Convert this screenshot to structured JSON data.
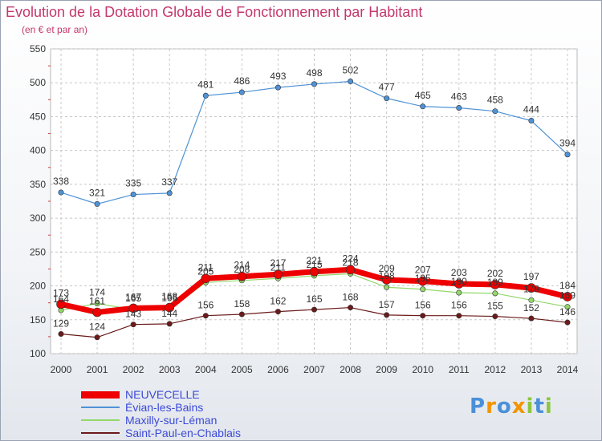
{
  "header": {
    "title": "Evolution de la Dotation Globale de Fonctionnement par Habitant",
    "subtitle": "(en € et par an)"
  },
  "colors": {
    "title": "#c4386b",
    "axis_text": "#333333",
    "legend_text": "#3b49d6",
    "grid": "#c8c8c8"
  },
  "chart_data": {
    "type": "line",
    "title": "Evolution de la Dotation Globale de Fonctionnement par Habitant",
    "subtitle": "(en € et par an)",
    "x": [
      "2000",
      "2001",
      "2002",
      "2003",
      "2004",
      "2005",
      "2006",
      "2007",
      "2008",
      "2009",
      "2010",
      "2011",
      "2012",
      "2013",
      "2014"
    ],
    "ylim": [
      100,
      550
    ],
    "yticks": [
      100,
      150,
      200,
      250,
      300,
      350,
      400,
      450,
      500,
      550
    ],
    "grid": true,
    "legend": "bottom-left",
    "series": [
      {
        "name": "NEUVECELLE",
        "color": "#ee0000",
        "values": [
          173,
          161,
          167,
          168,
          211,
          214,
          217,
          221,
          224,
          209,
          207,
          203,
          202,
          197,
          184
        ]
      },
      {
        "name": "Évian-les-Bains",
        "color": "#4f93d6",
        "values": [
          338,
          321,
          335,
          337,
          481,
          486,
          493,
          498,
          502,
          477,
          465,
          463,
          458,
          444,
          394
        ]
      },
      {
        "name": "Maxilly-sur-Léman",
        "color": "#92d86a",
        "values": [
          164,
          174,
          165,
          166,
          205,
          208,
          211,
          215,
          218,
          198,
          195,
          190,
          189,
          179,
          169
        ]
      },
      {
        "name": "Saint-Paul-en-Chablais",
        "color": "#6b1a1a",
        "values": [
          129,
          124,
          143,
          144,
          156,
          158,
          162,
          165,
          168,
          157,
          156,
          156,
          155,
          152,
          146
        ]
      }
    ]
  },
  "logo": {
    "letters": [
      "P",
      "r",
      "o",
      "x",
      "i",
      "t",
      "i"
    ],
    "colors": [
      "#4a90d9",
      "#f29400",
      "#4a90d9",
      "#f29400",
      "#8cc63f",
      "#4a90d9",
      "#8cc63f"
    ]
  }
}
